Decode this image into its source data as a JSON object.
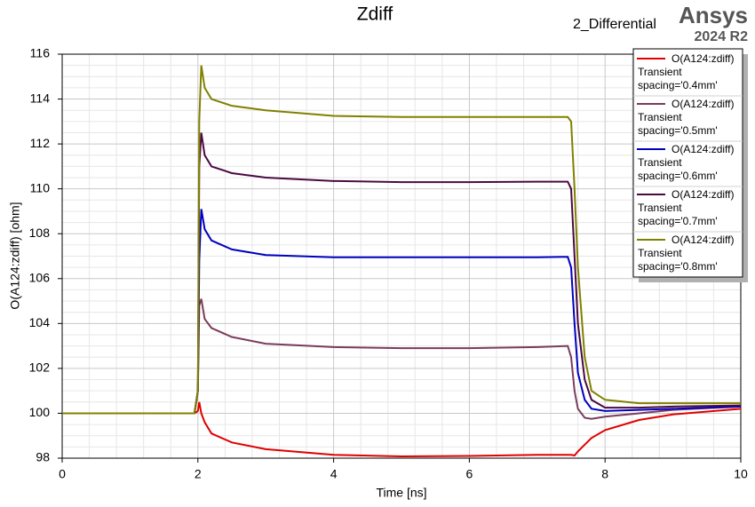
{
  "chart_data": {
    "type": "line",
    "title": "Zdiff",
    "subtitle": "2_Differential",
    "brand": "Ansys",
    "version": "2024 R2",
    "x_label": "Time [ns]",
    "y_label": "O(A124:zdiff) [ohm]",
    "x": [
      0,
      1.95,
      2.0,
      2.02,
      2.05,
      2.1,
      2.2,
      2.5,
      3,
      4,
      5,
      6,
      7,
      7.45,
      7.5,
      7.55,
      7.6,
      7.7,
      7.8,
      8,
      8.5,
      9,
      10
    ],
    "xlim": [
      0,
      10
    ],
    "xticks": [
      0,
      2,
      4,
      6,
      8,
      10
    ],
    "ylim": [
      98,
      116
    ],
    "yticks": [
      98,
      100,
      102,
      104,
      106,
      108,
      110,
      112,
      114,
      116
    ],
    "grid": true,
    "legend": "top-right",
    "series": [
      {
        "name": "O(A124:zdiff)",
        "setup": "Transient",
        "variation": "spacing='0.4mm'",
        "color": "#e00000",
        "values": [
          100,
          100,
          100.1,
          100.5,
          100,
          99.6,
          99.1,
          98.7,
          98.4,
          98.15,
          98.08,
          98.1,
          98.15,
          98.15,
          98.15,
          98.12,
          98.3,
          98.6,
          98.9,
          99.25,
          99.7,
          99.95,
          100.2
        ]
      },
      {
        "name": "O(A124:zdiff)",
        "setup": "Transient",
        "variation": "spacing='0.5mm'",
        "color": "#7a3c5c",
        "values": [
          100,
          100,
          101,
          104.8,
          105.1,
          104.2,
          103.8,
          103.4,
          103.1,
          102.95,
          102.9,
          102.9,
          102.95,
          103.0,
          102.5,
          101,
          100.2,
          99.8,
          99.75,
          99.85,
          100,
          100.15,
          100.3
        ]
      },
      {
        "name": "O(A124:zdiff)",
        "setup": "Transient",
        "variation": "spacing='0.6mm'",
        "color": "#0000c0",
        "values": [
          100,
          100,
          101,
          106.8,
          109.1,
          108.2,
          107.7,
          107.3,
          107.05,
          106.95,
          106.95,
          106.95,
          106.95,
          106.97,
          106.5,
          104,
          101.8,
          100.6,
          100.2,
          100.1,
          100.15,
          100.2,
          100.3
        ]
      },
      {
        "name": "O(A124:zdiff)",
        "setup": "Transient",
        "variation": "spacing='0.7mm'",
        "color": "#4a0a40",
        "values": [
          100,
          100,
          101,
          111,
          112.5,
          111.5,
          111,
          110.7,
          110.5,
          110.35,
          110.3,
          110.3,
          110.32,
          110.32,
          110,
          107,
          104,
          101.5,
          100.6,
          100.25,
          100.25,
          100.3,
          100.35
        ]
      },
      {
        "name": "O(A124:zdiff)",
        "setup": "Transient",
        "variation": "spacing='0.8mm'",
        "color": "#808000",
        "values": [
          100,
          100,
          101,
          113,
          115.5,
          114.5,
          114,
          113.7,
          113.5,
          113.25,
          113.2,
          113.2,
          113.2,
          113.2,
          113,
          110,
          106.5,
          102.5,
          101,
          100.6,
          100.45,
          100.45,
          100.45
        ]
      }
    ]
  }
}
